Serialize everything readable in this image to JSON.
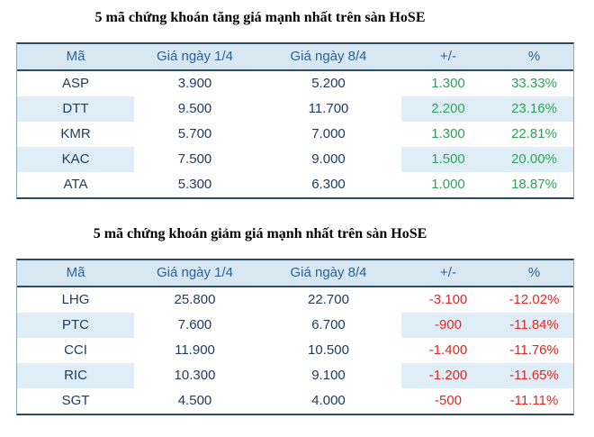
{
  "colors": {
    "header-bg": "#D7E8F2",
    "stripe-bg": "#DFEEF6",
    "header-text": "#2B5F96",
    "data-text": "#1E3B63",
    "up": "#2AA457",
    "down": "#E02722",
    "border-light": "#8BA7BC",
    "border-dark": "#2D4B61"
  },
  "tables": [
    {
      "title": "5 mã chứng khoán tăng giá mạnh nhất trên sàn HoSE",
      "trend": "up",
      "columns": [
        "Mã",
        "Giá ngày 1/4",
        "Giá ngày 8/4",
        "+/-",
        "%"
      ],
      "rows": [
        [
          "ASP",
          "3.900",
          "5.200",
          "1.300",
          "33.33%"
        ],
        [
          "DTT",
          "9.500",
          "11.700",
          "2.200",
          "23.16%"
        ],
        [
          "KMR",
          "5.700",
          "7.000",
          "1.300",
          "22.81%"
        ],
        [
          "KAC",
          "7.500",
          "9.000",
          "1.500",
          "20.00%"
        ],
        [
          "ATA",
          "5.300",
          "6.300",
          "1.000",
          "18.87%"
        ]
      ]
    },
    {
      "title": "5 mã chứng khoán giảm giá mạnh nhất trên sàn HoSE",
      "trend": "down",
      "columns": [
        "Mã",
        "Giá ngày 1/4",
        "Giá ngày 8/4",
        "+/-",
        "%"
      ],
      "rows": [
        [
          "LHG",
          "25.800",
          "22.700",
          "-3.100",
          "-12.02%"
        ],
        [
          "PTC",
          "7.600",
          "6.700",
          "-900",
          "-11.84%"
        ],
        [
          "CCI",
          "11.900",
          "10.500",
          "-1.400",
          "-11.76%"
        ],
        [
          "RIC",
          "10.300",
          "9.100",
          "-1.200",
          "-11.65%"
        ],
        [
          "SGT",
          "4.500",
          "4.000",
          "-500",
          "-11.11%"
        ]
      ]
    }
  ]
}
